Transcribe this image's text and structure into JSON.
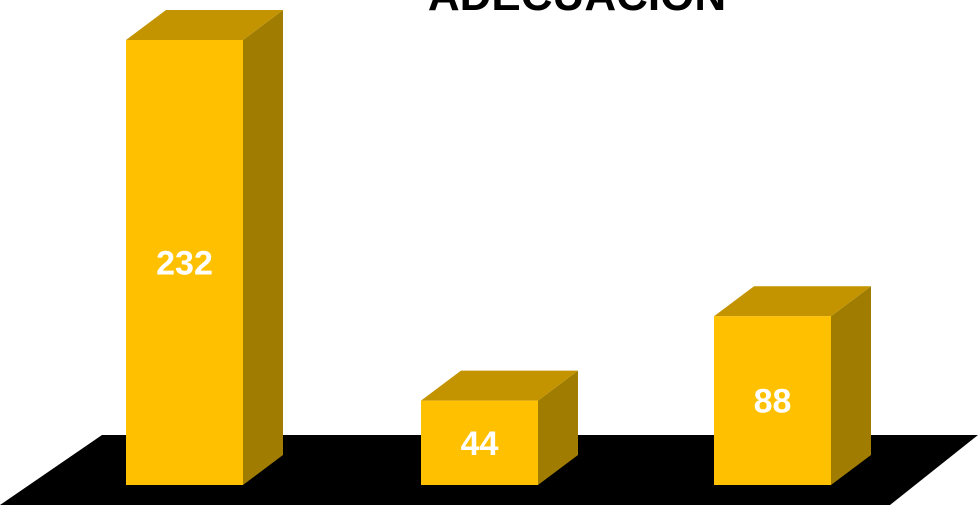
{
  "chart_data": {
    "type": "bar",
    "title": "ADECUACION",
    "categories": [
      "",
      "",
      ""
    ],
    "values": [
      232,
      44,
      88
    ],
    "ylim": [
      0,
      250
    ],
    "grid": false,
    "legend": "none",
    "colors": {
      "bar_front": "#FFC000",
      "bar_top": "#C49300",
      "bar_side": "#A07D00",
      "floor": "#000000",
      "value_label": "#FFFFFF",
      "title": "#000000"
    }
  }
}
